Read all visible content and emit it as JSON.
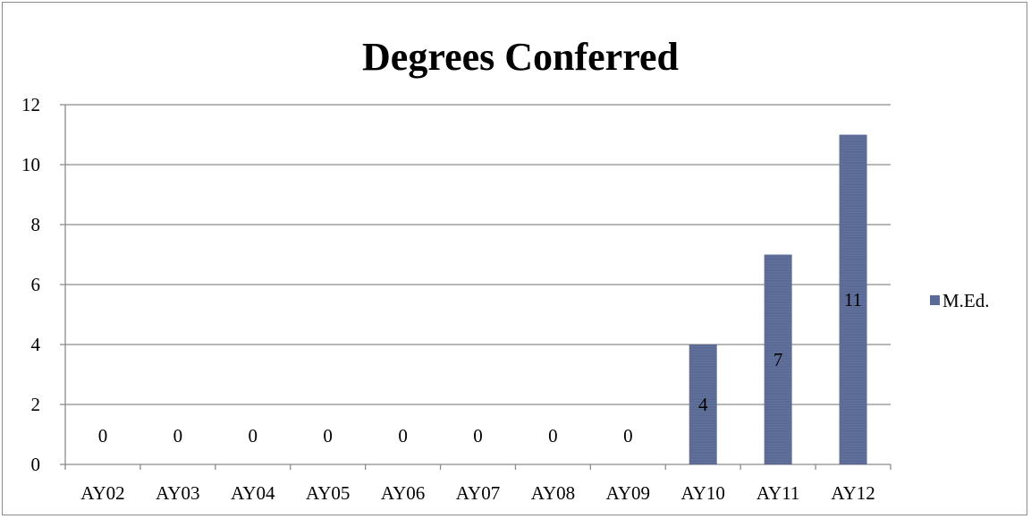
{
  "chart_data": {
    "type": "bar",
    "title": "Degrees Conferred",
    "xlabel": "",
    "ylabel": "",
    "categories": [
      "AY02",
      "AY03",
      "AY04",
      "AY05",
      "AY06",
      "AY07",
      "AY08",
      "AY09",
      "AY10",
      "AY11",
      "AY12"
    ],
    "series": [
      {
        "name": "M.Ed.",
        "values": [
          0,
          0,
          0,
          0,
          0,
          0,
          0,
          0,
          4,
          7,
          11
        ],
        "color": "#5b6b95"
      }
    ],
    "ylim": [
      0,
      12
    ],
    "yticks": [
      0,
      2,
      4,
      6,
      8,
      10,
      12
    ],
    "grid": true,
    "legend": "right",
    "data_labels": true
  }
}
